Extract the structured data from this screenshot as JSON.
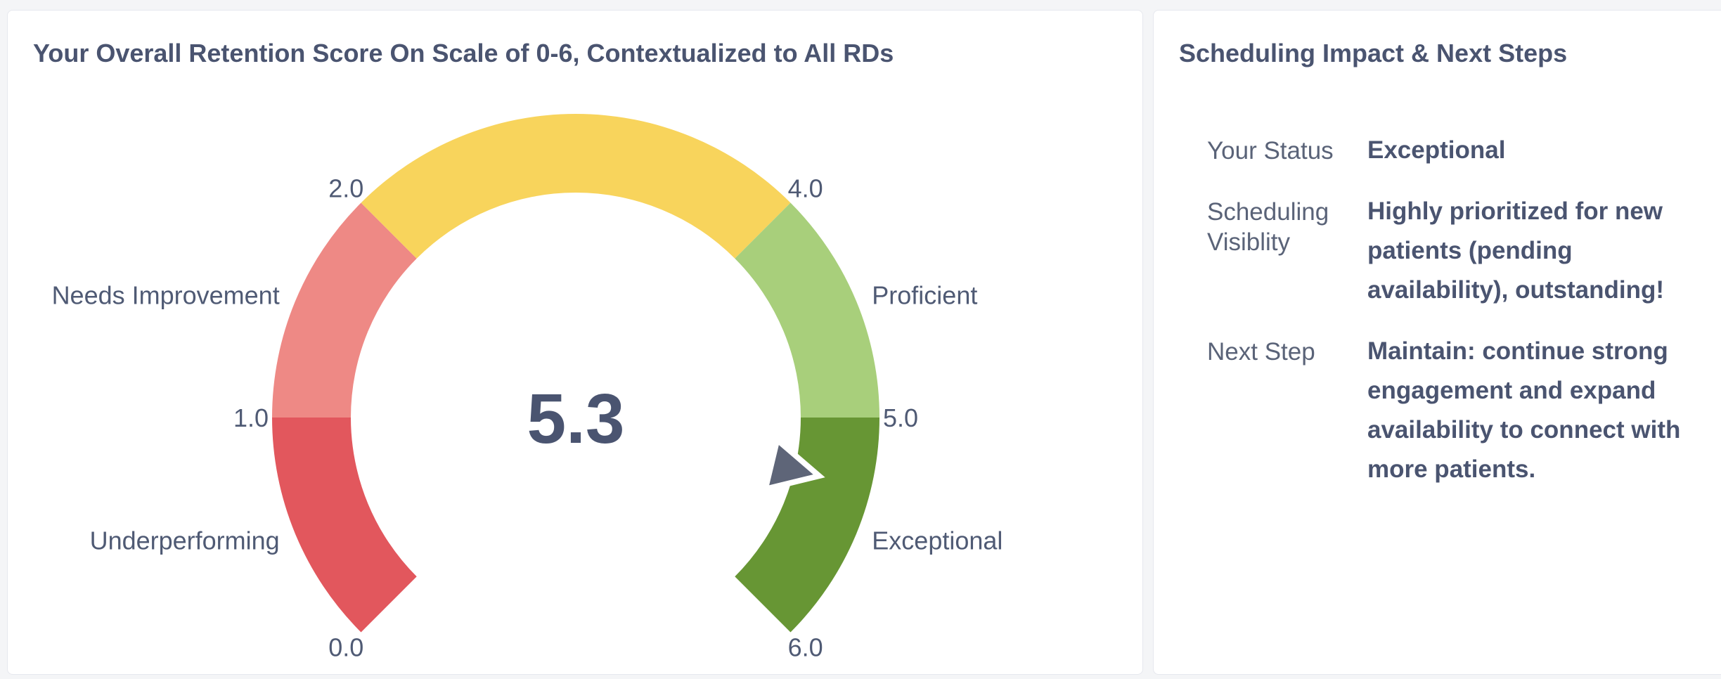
{
  "gauge_card": {
    "title": "Your Overall Retention Score On Scale of 0-6, Contextualized to All RDs"
  },
  "info_card": {
    "title": "Scheduling Impact & Next Steps",
    "rows": [
      {
        "label": "Your Status",
        "value": "Exceptional"
      },
      {
        "label": "Scheduling Visiblity",
        "value": "Highly prioritized for new patients (pending availability), outstanding!"
      },
      {
        "label": "Next Step",
        "value": "Maintain: continue strong engagement and expand availability to connect with more patients."
      }
    ]
  },
  "chart_data": {
    "type": "gauge",
    "title": "Your Overall Retention Score On Scale of 0-6, Contextualized to All RDs",
    "value": 5.3,
    "value_label": "5.3",
    "min": 0,
    "max": 6,
    "ticks": [
      "0.0",
      "1.0",
      "2.0",
      "4.0",
      "5.0",
      "6.0"
    ],
    "bands": [
      {
        "label": "Underperforming",
        "from": 0,
        "to": 1,
        "color": "#e2575d"
      },
      {
        "label": "Needs Improvement",
        "from": 1,
        "to": 2,
        "color": "#ee8985"
      },
      {
        "label": "",
        "from": 2,
        "to": 4,
        "color": "#f8d45c"
      },
      {
        "label": "Proficient",
        "from": 4,
        "to": 5,
        "color": "#a8cf7b"
      },
      {
        "label": "Exceptional",
        "from": 5,
        "to": 6,
        "color": "#679634"
      }
    ],
    "pointer_color": "#5e6578"
  }
}
